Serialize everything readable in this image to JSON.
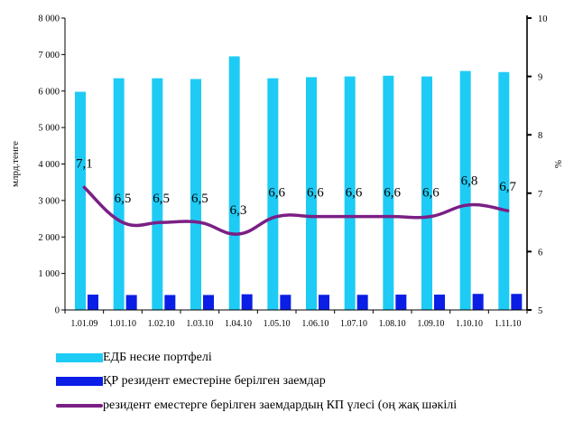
{
  "chart_data": {
    "type": "bar",
    "categories": [
      "1.01.09",
      "1.01.10",
      "1.02.10",
      "1.03.10",
      "1.04.10",
      "1.05.10",
      "1.06.10",
      "1.07.10",
      "1.08.10",
      "1.09.10",
      "1.10.10",
      "1.11.10"
    ],
    "series": [
      {
        "name": "ЕДБ несие портфелі",
        "type": "bar",
        "axis": "left",
        "color": "#1ecbf5",
        "values": [
          5980,
          6350,
          6350,
          6330,
          6950,
          6350,
          6380,
          6400,
          6420,
          6400,
          6550,
          6520
        ]
      },
      {
        "name": "ҚР резидент еместеріне берілген заемдар",
        "type": "bar",
        "axis": "left",
        "color": "#0a1ee6",
        "values": [
          420,
          410,
          410,
          410,
          430,
          415,
          415,
          415,
          420,
          420,
          440,
          440
        ]
      },
      {
        "name": "резидент еместерге берілген заемдардың КП үлесі (оң жақ шәкілі",
        "type": "line",
        "axis": "right",
        "color": "#7b1f85",
        "values": [
          7.1,
          6.5,
          6.5,
          6.5,
          6.3,
          6.6,
          6.6,
          6.6,
          6.6,
          6.6,
          6.8,
          6.7
        ],
        "labels": [
          "7,1",
          "6,5",
          "6,5",
          "6,5",
          "6,3",
          "6,6",
          "6,6",
          "6,6",
          "6,6",
          "6,6",
          "6,8",
          "6,7"
        ]
      }
    ],
    "ylabel": "млрд.тенге",
    "ylabel_right": "%",
    "ylim": [
      0,
      8000
    ],
    "ylim_right": [
      5,
      10
    ],
    "yticks": [
      "0",
      "1 000",
      "2 000",
      "3 000",
      "4 000",
      "5 000",
      "6 000",
      "7 000",
      "8 000"
    ],
    "yticks_right": [
      "5",
      "6",
      "7",
      "8",
      "9",
      "10"
    ],
    "legend_position": "bottom",
    "grid": false
  }
}
